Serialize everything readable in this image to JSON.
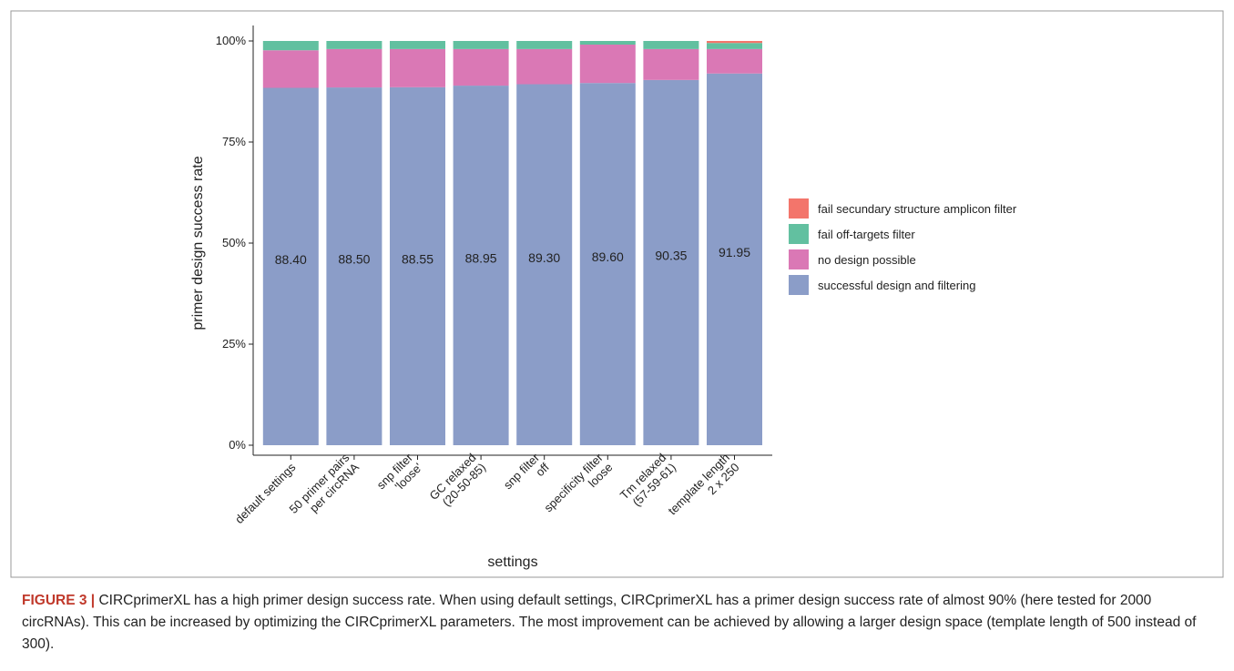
{
  "chart_data": {
    "type": "stacked_bar",
    "ylabel": "primer design success rate",
    "xlabel": "settings",
    "categories": [
      [
        "default settings"
      ],
      [
        "50 primer pairs",
        "per circRNA"
      ],
      [
        "snp filter",
        "'loose'"
      ],
      [
        "GC relaxed",
        "(20-50-85)"
      ],
      [
        "snp filter",
        "off"
      ],
      [
        "specificity filter",
        "loose"
      ],
      [
        "Tm relaxed",
        "(57-59-61)"
      ],
      [
        "template length",
        "2 x 250"
      ]
    ],
    "series": [
      {
        "name": "successful design and filtering",
        "color": "#8b9dc8",
        "values": [
          88.4,
          88.5,
          88.55,
          88.95,
          89.3,
          89.6,
          90.35,
          91.95
        ],
        "value_labels": [
          "88.40",
          "88.50",
          "88.55",
          "88.95",
          "89.30",
          "89.60",
          "90.35",
          "91.95"
        ]
      },
      {
        "name": "no design possible",
        "color": "#da78b5",
        "values": [
          9.3,
          9.5,
          9.45,
          9.05,
          8.7,
          9.5,
          7.65,
          6.05
        ]
      },
      {
        "name": "fail off-targets filter",
        "color": "#62c0a0",
        "values": [
          2.3,
          2.0,
          2.0,
          2.0,
          2.0,
          0.9,
          2.0,
          1.5
        ]
      },
      {
        "name": "fail secundary structure amplicon filter",
        "color": "#f3756b",
        "values": [
          0,
          0,
          0,
          0,
          0,
          0,
          0,
          0.5
        ]
      }
    ],
    "ylim": [
      0,
      100
    ],
    "yticks": [
      {
        "value": 0,
        "label": "0%"
      },
      {
        "value": 25,
        "label": "25%"
      },
      {
        "value": 50,
        "label": "50%"
      },
      {
        "value": 75,
        "label": "75%"
      },
      {
        "value": 100,
        "label": "100%"
      }
    ],
    "grid": false
  },
  "caption": {
    "label": "FIGURE 3 |",
    "text": "CIRCprimerXL has a high primer design success rate. When using default settings, CIRCprimerXL has a primer design success rate of almost 90% (here tested for 2000 circRNAs). This can be increased by optimizing the CIRCprimerXL parameters. The most improvement can be achieved by allowing a larger design space (template length of 500 instead of 300)."
  }
}
